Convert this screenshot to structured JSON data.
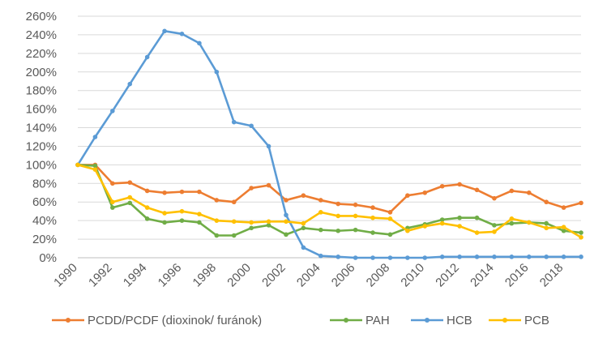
{
  "chart_data": {
    "type": "line",
    "title": "",
    "xlabel": "",
    "ylabel": "",
    "ylim": [
      0,
      260
    ],
    "y_tick_labels": [
      "0%",
      "20%",
      "40%",
      "60%",
      "80%",
      "100%",
      "120%",
      "140%",
      "160%",
      "180%",
      "200%",
      "220%",
      "240%",
      "260%"
    ],
    "y_ticks": [
      0,
      20,
      40,
      60,
      80,
      100,
      120,
      140,
      160,
      180,
      200,
      220,
      240,
      260
    ],
    "x_tick_labels": [
      "1990",
      "1992",
      "1994",
      "1996",
      "1998",
      "2000",
      "2002",
      "2004",
      "2006",
      "2008",
      "2010",
      "2012",
      "2014",
      "2016",
      "2018"
    ],
    "x": [
      1990,
      1991,
      1992,
      1993,
      1994,
      1995,
      1996,
      1997,
      1998,
      1999,
      2000,
      2001,
      2002,
      2003,
      2004,
      2005,
      2006,
      2007,
      2008,
      2009,
      2010,
      2011,
      2012,
      2013,
      2014,
      2015,
      2016,
      2017,
      2018,
      2019
    ],
    "grid": true,
    "legend_position": "bottom",
    "series": [
      {
        "name": "PCDD/PCDF (dioxinok/ furánok)",
        "color": "#ed7d31",
        "values": [
          100,
          100,
          80,
          81,
          72,
          70,
          71,
          71,
          62,
          60,
          75,
          78,
          62,
          67,
          62,
          58,
          57,
          54,
          49,
          67,
          70,
          77,
          79,
          73,
          64,
          72,
          70,
          60,
          54,
          59
        ]
      },
      {
        "name": "PAH",
        "color": "#70ad47",
        "values": [
          100,
          99,
          54,
          59,
          42,
          38,
          40,
          38,
          24,
          24,
          32,
          35,
          25,
          32,
          30,
          29,
          30,
          27,
          25,
          32,
          36,
          41,
          43,
          43,
          35,
          37,
          38,
          37,
          29,
          27
        ]
      },
      {
        "name": "HCB",
        "color": "#5b9bd5",
        "values": [
          100,
          130,
          158,
          187,
          216,
          244,
          241,
          231,
          200,
          146,
          142,
          120,
          46,
          11,
          2,
          1,
          0,
          0,
          0,
          0,
          0,
          1,
          1,
          1,
          1,
          1,
          1,
          1,
          1,
          1
        ]
      },
      {
        "name": "PCB",
        "color": "#ffc000",
        "values": [
          100,
          95,
          60,
          65,
          54,
          48,
          50,
          47,
          40,
          39,
          38,
          39,
          39,
          37,
          49,
          45,
          45,
          43,
          42,
          29,
          34,
          37,
          34,
          27,
          28,
          42,
          38,
          32,
          33,
          22
        ]
      }
    ]
  }
}
